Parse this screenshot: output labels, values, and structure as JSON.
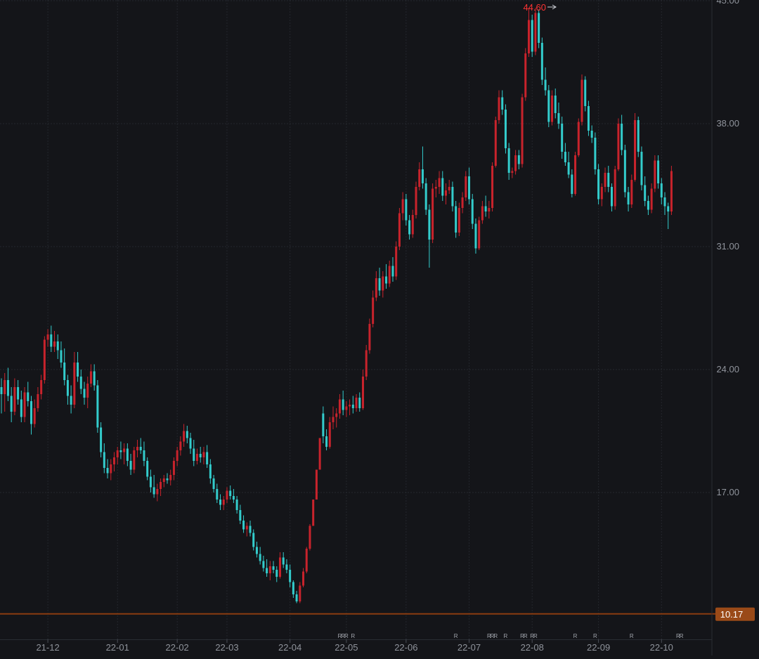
{
  "chart_data": {
    "type": "candlestick",
    "title": "",
    "xlabel": "",
    "ylabel": "",
    "grid": true,
    "ylim": [
      8.3,
      45.0
    ],
    "y_ticks": [
      "45.00",
      "38.00",
      "31.00",
      "24.00",
      "17.00"
    ],
    "x_ticks": [
      "21-12",
      "22-01",
      "22-02",
      "22-03",
      "22-04",
      "22-05",
      "22-06",
      "22-07",
      "22-08",
      "22-09",
      "22-10"
    ],
    "max_label": "44.60",
    "reference_line": {
      "value": 10.17,
      "label": "10.17"
    },
    "event_markers": [
      {
        "idx": 102,
        "text": "R"
      },
      {
        "idx": 103,
        "text": "R"
      },
      {
        "idx": 104,
        "text": "R"
      },
      {
        "idx": 106,
        "text": "R"
      },
      {
        "idx": 137,
        "text": "R"
      },
      {
        "idx": 147,
        "text": "R"
      },
      {
        "idx": 148,
        "text": "R"
      },
      {
        "idx": 149,
        "text": "R"
      },
      {
        "idx": 152,
        "text": "R"
      },
      {
        "idx": 157,
        "text": "R"
      },
      {
        "idx": 158,
        "text": "R"
      },
      {
        "idx": 160,
        "text": "R"
      },
      {
        "idx": 161,
        "text": "R"
      },
      {
        "idx": 173,
        "text": "R"
      },
      {
        "idx": 179,
        "text": "R"
      },
      {
        "idx": 190,
        "text": "R"
      },
      {
        "idx": 204,
        "text": "R"
      },
      {
        "idx": 205,
        "text": "R"
      }
    ],
    "colors": {
      "up": "#c8232c",
      "down": "#33cccc",
      "max_label": "#ff3333",
      "ref_line": "#8a3c10",
      "ref_badge": "#9a4a18"
    },
    "candles": [
      [
        23.0,
        23.5,
        21.5,
        22.6
      ],
      [
        22.6,
        23.8,
        21.6,
        23.4
      ],
      [
        23.4,
        24.1,
        22.2,
        22.5
      ],
      [
        22.5,
        23.0,
        21.0,
        21.6
      ],
      [
        21.6,
        23.5,
        21.4,
        23.0
      ],
      [
        23.0,
        23.4,
        22.0,
        22.3
      ],
      [
        22.3,
        22.8,
        21.0,
        21.3
      ],
      [
        21.3,
        23.0,
        21.0,
        22.7
      ],
      [
        22.7,
        23.3,
        21.9,
        22.2
      ],
      [
        22.2,
        22.5,
        20.3,
        20.9
      ],
      [
        20.9,
        22.3,
        20.7,
        21.8
      ],
      [
        21.8,
        23.0,
        21.6,
        22.6
      ],
      [
        22.6,
        23.7,
        22.3,
        23.4
      ],
      [
        23.4,
        25.9,
        23.2,
        25.7
      ],
      [
        25.7,
        26.3,
        25.3,
        26.0
      ],
      [
        26.0,
        26.5,
        25.0,
        25.3
      ],
      [
        25.3,
        26.2,
        25.0,
        25.6
      ],
      [
        25.6,
        26.0,
        24.6,
        25.1
      ],
      [
        25.1,
        25.6,
        24.1,
        24.4
      ],
      [
        24.4,
        25.2,
        23.1,
        23.4
      ],
      [
        23.4,
        23.7,
        22.0,
        22.5
      ],
      [
        22.5,
        23.1,
        21.5,
        22.0
      ],
      [
        22.0,
        25.0,
        21.8,
        24.4
      ],
      [
        24.4,
        25.0,
        23.3,
        23.6
      ],
      [
        23.6,
        24.0,
        22.6,
        22.9
      ],
      [
        22.9,
        23.3,
        22.0,
        22.4
      ],
      [
        22.4,
        23.6,
        21.8,
        23.2
      ],
      [
        23.2,
        24.3,
        23.0,
        23.9
      ],
      [
        23.9,
        24.3,
        22.8,
        23.1
      ],
      [
        23.1,
        23.4,
        20.4,
        20.7
      ],
      [
        20.7,
        21.0,
        19.0,
        19.3
      ],
      [
        19.3,
        19.8,
        18.1,
        18.4
      ],
      [
        18.4,
        18.9,
        17.8,
        18.1
      ],
      [
        18.1,
        18.9,
        17.7,
        18.6
      ],
      [
        18.6,
        19.3,
        18.2,
        19.0
      ],
      [
        19.0,
        19.6,
        18.6,
        19.4
      ],
      [
        19.4,
        19.9,
        18.9,
        19.3
      ],
      [
        19.3,
        19.8,
        18.6,
        19.5
      ],
      [
        19.5,
        19.8,
        18.5,
        18.8
      ],
      [
        18.8,
        19.2,
        18.0,
        18.3
      ],
      [
        18.3,
        19.6,
        18.1,
        19.4
      ],
      [
        19.4,
        20.0,
        19.0,
        19.6
      ],
      [
        19.6,
        20.1,
        19.2,
        19.4
      ],
      [
        19.4,
        19.9,
        18.5,
        18.8
      ],
      [
        18.8,
        19.0,
        17.7,
        17.9
      ],
      [
        17.9,
        18.3,
        17.0,
        17.3
      ],
      [
        17.3,
        18.0,
        16.7,
        16.9
      ],
      [
        16.9,
        17.5,
        16.5,
        17.2
      ],
      [
        17.2,
        17.8,
        16.8,
        17.6
      ],
      [
        17.6,
        18.0,
        17.3,
        17.8
      ],
      [
        17.8,
        18.1,
        17.5,
        17.7
      ],
      [
        17.7,
        18.3,
        17.4,
        18.0
      ],
      [
        18.0,
        19.0,
        17.7,
        18.8
      ],
      [
        18.8,
        19.6,
        18.5,
        19.4
      ],
      [
        19.4,
        20.2,
        19.1,
        19.9
      ],
      [
        19.9,
        20.9,
        19.6,
        20.5
      ],
      [
        20.5,
        20.8,
        19.8,
        20.1
      ],
      [
        20.1,
        20.4,
        19.2,
        19.5
      ],
      [
        19.5,
        20.0,
        18.5,
        18.8
      ],
      [
        18.8,
        19.5,
        18.6,
        19.2
      ],
      [
        19.2,
        19.6,
        18.7,
        19.0
      ],
      [
        19.0,
        19.6,
        18.6,
        19.3
      ],
      [
        19.3,
        19.7,
        18.4,
        18.6
      ],
      [
        18.6,
        18.9,
        17.5,
        17.8
      ],
      [
        17.8,
        18.0,
        17.0,
        17.2
      ],
      [
        17.2,
        17.5,
        16.4,
        16.6
      ],
      [
        16.6,
        16.9,
        16.0,
        16.3
      ],
      [
        16.3,
        16.8,
        16.0,
        16.6
      ],
      [
        16.6,
        17.3,
        16.4,
        17.1
      ],
      [
        17.1,
        17.4,
        16.6,
        16.8
      ],
      [
        16.8,
        17.2,
        16.4,
        16.6
      ],
      [
        16.6,
        16.8,
        15.8,
        16.0
      ],
      [
        16.0,
        16.3,
        15.2,
        15.4
      ],
      [
        15.4,
        15.7,
        14.7,
        14.9
      ],
      [
        14.9,
        15.3,
        14.5,
        15.1
      ],
      [
        15.1,
        15.4,
        14.5,
        14.7
      ],
      [
        14.7,
        14.9,
        13.7,
        13.9
      ],
      [
        13.9,
        14.2,
        13.3,
        13.5
      ],
      [
        13.5,
        13.9,
        12.9,
        13.1
      ],
      [
        13.1,
        13.4,
        12.5,
        12.7
      ],
      [
        12.7,
        13.2,
        12.2,
        12.4
      ],
      [
        12.4,
        13.1,
        12.0,
        12.8
      ],
      [
        12.8,
        13.1,
        12.4,
        12.6
      ],
      [
        12.6,
        12.8,
        11.9,
        12.2
      ],
      [
        12.2,
        13.6,
        12.1,
        13.3
      ],
      [
        13.3,
        13.6,
        12.7,
        12.9
      ],
      [
        12.9,
        13.2,
        12.4,
        12.6
      ],
      [
        12.6,
        12.9,
        11.6,
        11.9
      ],
      [
        11.9,
        12.0,
        11.0,
        11.2
      ],
      [
        11.2,
        11.4,
        10.7,
        10.8
      ],
      [
        10.8,
        11.9,
        10.7,
        11.7
      ],
      [
        11.7,
        12.7,
        11.6,
        12.5
      ],
      [
        12.5,
        13.9,
        12.4,
        13.8
      ],
      [
        13.8,
        15.2,
        13.7,
        15.1
      ],
      [
        15.1,
        16.6,
        15.1,
        16.6
      ],
      [
        16.6,
        18.3,
        16.6,
        18.3
      ],
      [
        18.3,
        20.1,
        18.3,
        20.1
      ],
      [
        21.5,
        21.9,
        19.8,
        20.2
      ],
      [
        20.2,
        20.6,
        19.4,
        19.6
      ],
      [
        19.6,
        21.3,
        19.5,
        21.0
      ],
      [
        21.0,
        21.9,
        20.6,
        21.3
      ],
      [
        21.3,
        21.8,
        20.7,
        21.5
      ],
      [
        21.5,
        22.6,
        21.2,
        22.3
      ],
      [
        22.3,
        22.8,
        21.4,
        21.7
      ],
      [
        21.7,
        22.2,
        21.3,
        21.9
      ],
      [
        21.9,
        22.3,
        21.4,
        22.0
      ],
      [
        22.0,
        22.5,
        21.5,
        21.8
      ],
      [
        21.8,
        22.6,
        21.6,
        22.4
      ],
      [
        22.4,
        22.7,
        21.6,
        21.8
      ],
      [
        21.8,
        24.0,
        21.7,
        23.6
      ],
      [
        23.6,
        25.4,
        23.4,
        25.1
      ],
      [
        25.1,
        26.9,
        24.9,
        26.6
      ],
      [
        26.6,
        28.5,
        26.4,
        28.1
      ],
      [
        28.1,
        29.6,
        27.9,
        29.2
      ],
      [
        29.2,
        29.8,
        28.2,
        28.5
      ],
      [
        28.5,
        29.6,
        28.1,
        29.3
      ],
      [
        29.3,
        30.0,
        28.6,
        28.9
      ],
      [
        28.9,
        30.2,
        28.7,
        29.9
      ],
      [
        29.9,
        30.4,
        29.0,
        29.3
      ],
      [
        29.3,
        31.3,
        29.1,
        31.0
      ],
      [
        31.0,
        33.2,
        30.8,
        32.9
      ],
      [
        32.9,
        34.1,
        32.5,
        33.7
      ],
      [
        33.7,
        34.0,
        32.2,
        32.5
      ],
      [
        32.5,
        32.8,
        31.4,
        31.7
      ],
      [
        31.7,
        33.1,
        31.5,
        32.8
      ],
      [
        32.8,
        34.7,
        32.6,
        34.4
      ],
      [
        34.4,
        35.8,
        34.2,
        35.4
      ],
      [
        35.4,
        36.7,
        34.3,
        34.6
      ],
      [
        34.6,
        34.9,
        32.8,
        33.1
      ],
      [
        33.1,
        33.4,
        29.8,
        31.4
      ],
      [
        31.4,
        34.6,
        31.2,
        34.3
      ],
      [
        34.3,
        34.8,
        33.8,
        34.4
      ],
      [
        34.4,
        35.3,
        34.0,
        34.9
      ],
      [
        34.9,
        35.3,
        33.6,
        33.9
      ],
      [
        33.9,
        34.6,
        33.4,
        34.2
      ],
      [
        34.2,
        34.8,
        34.0,
        34.4
      ],
      [
        34.4,
        34.7,
        33.0,
        33.3
      ],
      [
        33.3,
        33.6,
        31.5,
        31.8
      ],
      [
        31.8,
        33.5,
        31.6,
        33.2
      ],
      [
        33.2,
        34.1,
        32.9,
        33.8
      ],
      [
        33.8,
        35.3,
        33.6,
        35.0
      ],
      [
        35.0,
        35.5,
        33.4,
        33.7
      ],
      [
        33.7,
        34.0,
        32.0,
        32.3
      ],
      [
        32.3,
        32.6,
        30.6,
        30.9
      ],
      [
        30.9,
        32.7,
        30.8,
        32.5
      ],
      [
        32.5,
        33.6,
        32.3,
        33.3
      ],
      [
        33.3,
        33.9,
        32.7,
        33.0
      ],
      [
        33.0,
        33.6,
        32.6,
        33.2
      ],
      [
        33.2,
        35.8,
        33.0,
        35.6
      ],
      [
        35.6,
        38.4,
        35.5,
        38.2
      ],
      [
        38.2,
        39.9,
        38.0,
        39.5
      ],
      [
        39.5,
        39.9,
        38.5,
        38.8
      ],
      [
        38.8,
        39.1,
        36.3,
        36.6
      ],
      [
        36.6,
        36.9,
        34.8,
        35.2
      ],
      [
        35.2,
        35.5,
        34.9,
        35.3
      ],
      [
        35.3,
        36.5,
        35.1,
        36.2
      ],
      [
        36.2,
        36.5,
        35.4,
        35.7
      ],
      [
        35.7,
        39.7,
        35.5,
        39.5
      ],
      [
        39.5,
        42.3,
        39.3,
        42.0
      ],
      [
        42.0,
        44.6,
        41.8,
        43.9
      ],
      [
        43.9,
        44.2,
        41.8,
        42.1
      ],
      [
        42.1,
        44.6,
        41.9,
        44.3
      ],
      [
        44.3,
        44.5,
        42.3,
        42.6
      ],
      [
        42.6,
        42.9,
        40.2,
        40.5
      ],
      [
        40.5,
        41.2,
        39.6,
        39.9
      ],
      [
        39.9,
        40.2,
        37.8,
        38.1
      ],
      [
        38.1,
        39.9,
        37.9,
        39.6
      ],
      [
        39.6,
        40.0,
        38.3,
        38.6
      ],
      [
        38.6,
        39.2,
        37.7,
        38.0
      ],
      [
        38.0,
        38.4,
        36.0,
        36.4
      ],
      [
        36.4,
        36.9,
        35.6,
        35.8
      ],
      [
        35.8,
        36.4,
        34.9,
        35.1
      ],
      [
        35.1,
        35.4,
        33.8,
        34.0
      ],
      [
        34.0,
        36.4,
        33.9,
        36.2
      ],
      [
        36.2,
        38.3,
        36.1,
        38.1
      ],
      [
        38.1,
        40.8,
        37.9,
        40.5
      ],
      [
        40.5,
        40.7,
        38.7,
        39.0
      ],
      [
        39.0,
        39.3,
        37.3,
        37.6
      ],
      [
        37.6,
        37.9,
        36.9,
        37.2
      ],
      [
        37.2,
        37.5,
        35.1,
        35.4
      ],
      [
        35.4,
        35.7,
        33.4,
        33.7
      ],
      [
        33.7,
        34.6,
        33.3,
        34.4
      ],
      [
        34.4,
        35.5,
        34.1,
        35.2
      ],
      [
        35.2,
        35.6,
        34.1,
        34.4
      ],
      [
        34.4,
        34.6,
        33.0,
        33.3
      ],
      [
        33.3,
        35.6,
        33.1,
        35.4
      ],
      [
        35.4,
        38.3,
        35.3,
        38.0
      ],
      [
        38.0,
        38.5,
        36.2,
        36.5
      ],
      [
        36.5,
        36.8,
        33.8,
        34.1
      ],
      [
        34.1,
        34.4,
        33.0,
        33.4
      ],
      [
        33.4,
        35.1,
        33.2,
        34.8
      ],
      [
        34.8,
        38.6,
        34.7,
        38.2
      ],
      [
        38.2,
        38.4,
        36.1,
        36.4
      ],
      [
        36.4,
        36.7,
        34.2,
        34.5
      ],
      [
        34.5,
        35.0,
        33.3,
        33.6
      ],
      [
        33.6,
        33.9,
        32.8,
        33.1
      ],
      [
        33.1,
        34.6,
        32.9,
        34.3
      ],
      [
        34.3,
        36.2,
        34.1,
        35.9
      ],
      [
        35.9,
        36.2,
        34.3,
        34.6
      ],
      [
        34.6,
        34.9,
        33.4,
        33.8
      ],
      [
        33.8,
        34.1,
        32.8,
        33.3
      ],
      [
        33.3,
        33.5,
        32.0,
        33.0
      ],
      [
        33.0,
        35.6,
        32.8,
        35.3
      ]
    ]
  }
}
